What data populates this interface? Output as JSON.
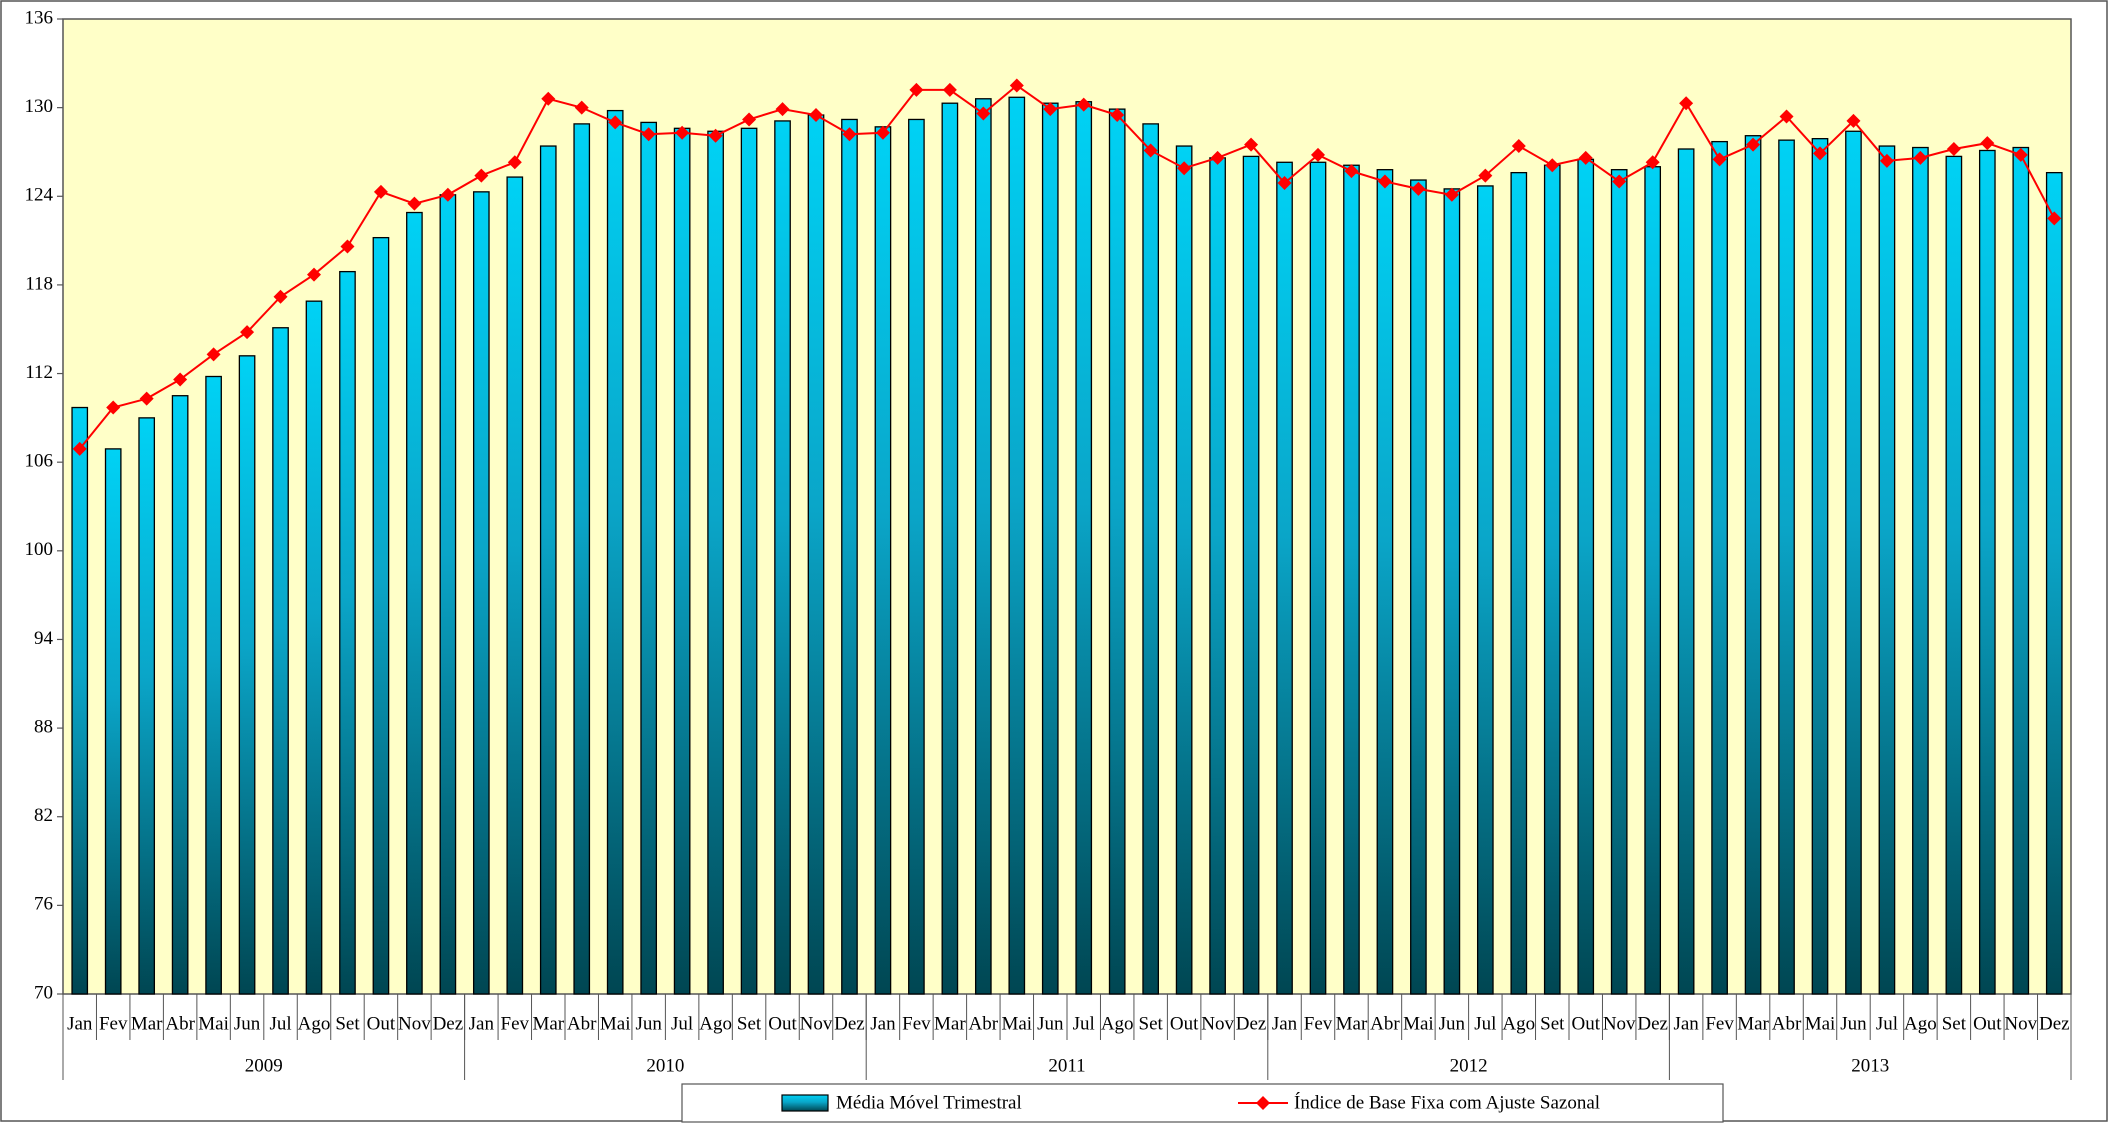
{
  "chart_data": {
    "type": "bar_line",
    "categories": [
      "Jan",
      "Fev",
      "Mar",
      "Abr",
      "Mai",
      "Jun",
      "Jul",
      "Ago",
      "Set",
      "Out",
      "Nov",
      "Dez",
      "Jan",
      "Fev",
      "Mar",
      "Abr",
      "Mai",
      "Jun",
      "Jul",
      "Ago",
      "Set",
      "Out",
      "Nov",
      "Dez",
      "Jan",
      "Fev",
      "Mar",
      "Abr",
      "Mai",
      "Jun",
      "Jul",
      "Ago",
      "Set",
      "Out",
      "Nov",
      "Dez",
      "Jan",
      "Fev",
      "Mar",
      "Abr",
      "Mai",
      "Jun",
      "Jul",
      "Ago",
      "Set",
      "Out",
      "Nov",
      "Dez",
      "Jan",
      "Fev",
      "Mar",
      "Abr",
      "Mai",
      "Jun",
      "Jul",
      "Ago",
      "Set",
      "Out",
      "Nov",
      "Dez"
    ],
    "years": [
      "2009",
      "2010",
      "2011",
      "2012",
      "2013"
    ],
    "series": [
      {
        "name": "Média Móvel Trimestral",
        "type": "bar",
        "color": "#00c8f0",
        "values": [
          109.7,
          106.9,
          109.0,
          110.5,
          111.8,
          113.2,
          115.1,
          116.9,
          118.9,
          121.2,
          122.9,
          124.1,
          124.3,
          125.3,
          127.4,
          128.9,
          129.8,
          129.0,
          128.6,
          128.4,
          128.6,
          129.1,
          129.5,
          129.2,
          128.7,
          129.2,
          130.3,
          130.6,
          130.7,
          130.3,
          130.4,
          129.9,
          128.9,
          127.4,
          126.6,
          126.7,
          126.3,
          126.3,
          126.1,
          125.8,
          125.1,
          124.5,
          124.7,
          125.6,
          126.1,
          126.5,
          125.8,
          126.0,
          127.2,
          127.7,
          128.1,
          127.8,
          127.9,
          128.4,
          127.4,
          127.3,
          126.7,
          127.1,
          127.3,
          125.6
        ]
      },
      {
        "name": "Índice de Base Fixa com Ajuste Sazonal",
        "type": "line",
        "color": "#ff0000",
        "values": [
          106.9,
          109.7,
          110.3,
          111.6,
          113.3,
          114.8,
          117.2,
          118.7,
          120.6,
          124.3,
          123.5,
          124.1,
          125.4,
          126.3,
          130.6,
          130.0,
          129.0,
          128.2,
          128.3,
          128.1,
          129.2,
          129.9,
          129.5,
          128.2,
          128.3,
          131.2,
          131.2,
          129.6,
          131.5,
          129.9,
          130.2,
          129.5,
          127.1,
          125.9,
          126.6,
          127.5,
          124.9,
          126.8,
          125.7,
          125.0,
          124.5,
          124.1,
          125.4,
          127.4,
          126.1,
          126.6,
          125.0,
          126.3,
          130.3,
          126.5,
          127.5,
          129.4,
          126.9,
          129.1,
          126.4,
          126.6,
          127.2,
          127.6,
          126.8,
          122.5
        ]
      }
    ],
    "ylim": [
      70,
      136
    ],
    "yticks": [
      70,
      76,
      82,
      88,
      94,
      100,
      106,
      112,
      118,
      124,
      130,
      136
    ],
    "plot_background": "#ffffc8"
  }
}
